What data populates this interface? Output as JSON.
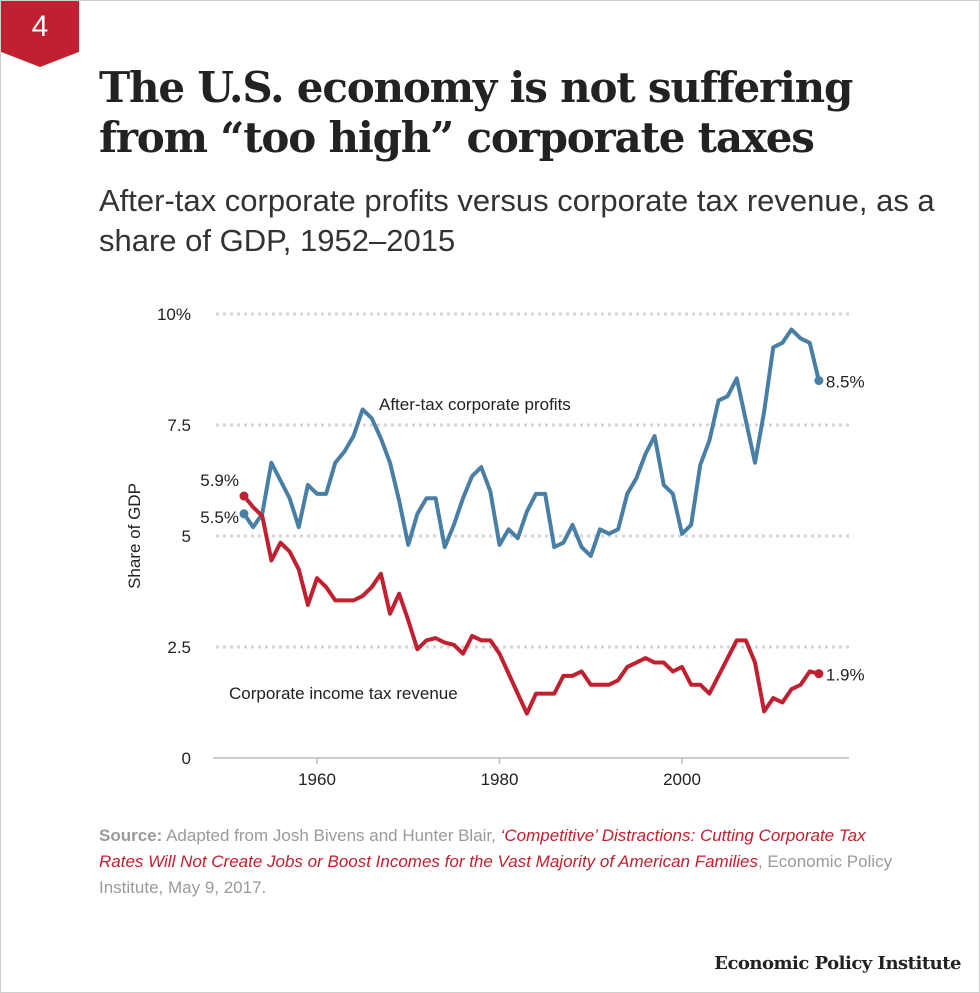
{
  "badge": "4",
  "title": "The U.S. economy is not suffering from “too high” corporate taxes",
  "subtitle": "After-tax corporate profits versus corporate tax revenue, as a share of GDP, 1952–2015",
  "source": {
    "label": "Source:",
    "pre": " Adapted from Josh Bivens and Hunter Blair, ",
    "link": "‘Competitive’ Distractions: Cutting Corporate Tax Rates Will Not Create Jobs or Boost Incomes for the Vast Majority of American Families",
    "post": ", Economic Policy Institute, May 9, 2017."
  },
  "logo": "Economic Policy Institute",
  "chart_data": {
    "type": "line",
    "title": "",
    "xlabel": "",
    "ylabel": "Share of GDP",
    "xlim": [
      1950,
      2018
    ],
    "ylim": [
      0,
      10
    ],
    "x_ticks": [
      1960,
      1980,
      2000
    ],
    "y_ticks": [
      {
        "value": 0,
        "label": "0"
      },
      {
        "value": 2.5,
        "label": "2.5"
      },
      {
        "value": 5,
        "label": "5"
      },
      {
        "value": 7.5,
        "label": "7.5"
      },
      {
        "value": 10,
        "label": "10%"
      }
    ],
    "grid": "horizontal dotted",
    "x_start": 1952,
    "series": [
      {
        "name": "After-tax corporate profits",
        "color": "#4a7fa5",
        "start_label": "5.5%",
        "end_label": "8.5%",
        "values": [
          5.5,
          5.2,
          5.5,
          6.65,
          6.25,
          5.85,
          5.2,
          6.15,
          5.95,
          5.95,
          6.65,
          6.9,
          7.25,
          7.85,
          7.65,
          7.2,
          6.65,
          5.8,
          4.8,
          5.5,
          5.85,
          5.85,
          4.75,
          5.25,
          5.85,
          6.35,
          6.55,
          6.0,
          4.8,
          5.15,
          4.95,
          5.55,
          5.95,
          5.95,
          4.75,
          4.85,
          5.25,
          4.75,
          4.55,
          5.15,
          5.05,
          5.15,
          5.95,
          6.3,
          6.85,
          7.25,
          6.15,
          5.95,
          5.05,
          5.25,
          6.6,
          7.15,
          8.05,
          8.15,
          8.55,
          7.6,
          6.65,
          7.8,
          9.25,
          9.35,
          9.65,
          9.45,
          9.35,
          8.5
        ]
      },
      {
        "name": "Corporate income tax revenue",
        "color": "#c0202f",
        "start_label": "5.9%",
        "end_label": "1.9%",
        "values": [
          5.9,
          5.65,
          5.45,
          4.45,
          4.85,
          4.65,
          4.25,
          3.45,
          4.05,
          3.85,
          3.55,
          3.55,
          3.55,
          3.65,
          3.85,
          4.15,
          3.25,
          3.7,
          3.1,
          2.45,
          2.65,
          2.7,
          2.6,
          2.55,
          2.35,
          2.75,
          2.65,
          2.65,
          2.35,
          1.9,
          1.45,
          1.0,
          1.45,
          1.45,
          1.45,
          1.85,
          1.85,
          1.95,
          1.65,
          1.65,
          1.65,
          1.75,
          2.05,
          2.15,
          2.25,
          2.15,
          2.15,
          1.95,
          2.05,
          1.65,
          1.65,
          1.45,
          1.85,
          2.25,
          2.65,
          2.65,
          2.15,
          1.05,
          1.35,
          1.25,
          1.55,
          1.65,
          1.95,
          1.9
        ]
      }
    ]
  }
}
